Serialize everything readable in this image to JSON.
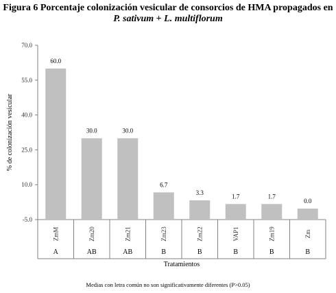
{
  "title_line1": "Figura 6 Porcentaje colonización vesicular de consorcios de HMA propagados en",
  "title_line2_part1": "P. sativum",
  "title_line2_sep": " + ",
  "title_line2_part2": "L. multiflorum",
  "footnote": "Medias con letra común no son significativamente diferentes (P>0.05)",
  "chart_data": {
    "type": "bar",
    "categories": [
      "ZmM",
      "Zm20",
      "Zm21",
      "Zm23",
      "Zm22",
      "VAP1",
      "Zm19",
      "Zm"
    ],
    "values": [
      60.0,
      30.0,
      30.0,
      6.7,
      3.3,
      1.7,
      1.7,
      0.0
    ],
    "value_labels": [
      "60.0",
      "30.0",
      "30.0",
      "6.7",
      "3.3",
      "1.7",
      "1.7",
      "0.0"
    ],
    "groups": [
      "A",
      "AB",
      "AB",
      "B",
      "B",
      "B",
      "B",
      "B"
    ],
    "xlabel": "Tratamientos",
    "ylabel": "% de colonización vesicular",
    "ylim": [
      -5.0,
      70.0
    ],
    "yticks": [
      -5.0,
      10.0,
      25.0,
      40.0,
      55.0,
      70.0
    ],
    "ytick_labels": [
      "-5.0",
      "10.0",
      "25.0",
      "40.0",
      "55.0",
      "70.0"
    ],
    "grid": false,
    "bar_color": "#c0c0c0",
    "axis_color": "#808080"
  }
}
